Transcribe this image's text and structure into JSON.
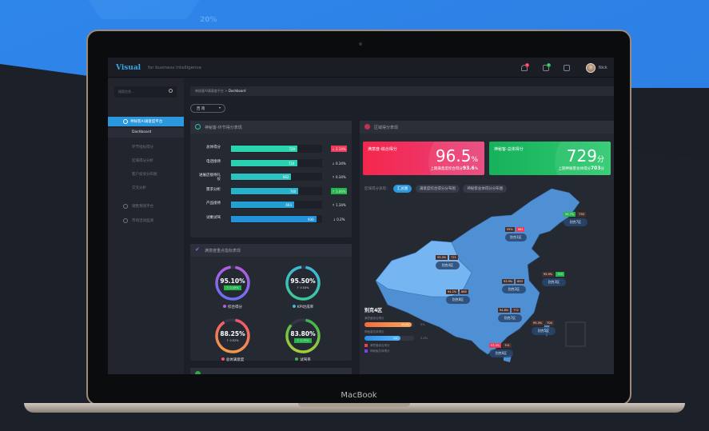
{
  "background": {
    "deco_text": "20%"
  },
  "device": {
    "brand": "MacBook"
  },
  "header": {
    "logo": "Visual",
    "tagline": "for business intelligence",
    "notifications_count": "1",
    "messages_count": "1",
    "user_name": "Nick"
  },
  "sidebar": {
    "search_placeholder": "搜索信息...",
    "items": [
      {
        "label": "神秘客AI满意度平台",
        "active": true
      },
      {
        "label": "Dashboard",
        "sub": true,
        "active": true
      },
      {
        "label": "环节指标得分",
        "sub": true
      },
      {
        "label": "区域得分分析",
        "sub": true
      },
      {
        "label": "客户投诉分布图",
        "sub": true
      },
      {
        "label": "交叉分析",
        "sub": true
      },
      {
        "label": "销售预测平台"
      },
      {
        "label": "市场活动监测"
      }
    ]
  },
  "breadcrumb": {
    "parent": "神秘客AI满意度平台",
    "sep": ">",
    "current": "Dashboard"
  },
  "region_select": {
    "value": "西 南"
  },
  "stage_panel": {
    "title": "神秘客-环节得分表现",
    "rows": [
      {
        "label": "总体得分",
        "value": 729,
        "change": "↓ 2.34%",
        "status": "down-alert"
      },
      {
        "label": "电话接待",
        "value": 724,
        "change": "↓ 0.34%",
        "status": "neutral"
      },
      {
        "label": "进展店接待礼仪",
        "value": 662,
        "change": "↑ 0.34%",
        "status": "neutral"
      },
      {
        "label": "需求分析",
        "value": 740,
        "change": "↑ 3.06%",
        "status": "up-alert"
      },
      {
        "label": "产品接待",
        "value": 693,
        "change": "↑ 1.34%",
        "status": "neutral"
      },
      {
        "label": "试乘试驾",
        "value": 936,
        "change": "↓ 0.2%",
        "status": "neutral"
      }
    ],
    "scale_max": 1000
  },
  "focus_panel": {
    "title": "满意度重点指标表现",
    "rings": [
      {
        "label": "综合得分",
        "value": "95.10%",
        "percent": 95.1,
        "change": "↑ 0.49%",
        "highlight": true,
        "colors": [
          "#6a6ff0",
          "#b65de0"
        ]
      },
      {
        "label": "KPI达成率",
        "value": "95.50%",
        "percent": 95.5,
        "change": "↑ 0.54%",
        "highlight": false,
        "colors": [
          "#3ec69a",
          "#3bbad9"
        ]
      },
      {
        "label": "总体满意度",
        "value": "88.25%",
        "percent": 88.25,
        "change": "↑ 0.52%",
        "highlight": false,
        "colors": [
          "#f29a4a",
          "#f0566a"
        ]
      },
      {
        "label": "试驾率",
        "value": "83.80%",
        "percent": 83.8,
        "change": "↑ 0.79%",
        "highlight": true,
        "colors": [
          "#a6cf3a",
          "#3fb44e"
        ]
      }
    ]
  },
  "region_panel": {
    "title": "区域得分表现",
    "kpi_left": {
      "title": "满意度-综合得分",
      "value": "96.5",
      "unit": "%",
      "sub_label": "上期满意度综合得分",
      "sub_value": "93.6",
      "sub_unit": "%"
    },
    "kpi_right": {
      "title": "神秘客-总体得分",
      "value": "729",
      "unit": "分",
      "sub_label": "上期神秘客总体得分",
      "sub_value": "703",
      "sub_unit": "分"
    },
    "map_label": "区域得分表现：",
    "map_tabs": [
      {
        "label": "汇总图",
        "active": true
      },
      {
        "label": "满意度综合得分分布图"
      },
      {
        "label": "神秘客总体得分分布图"
      }
    ],
    "regions": [
      {
        "name": "别克7区",
        "pct": "96.7%",
        "score": "730",
        "pct_status": "g"
      },
      {
        "name": "别克1区",
        "pct": "95%",
        "score": "665",
        "score_status": "r"
      },
      {
        "name": "别克4区",
        "pct": "95.0%",
        "score": "721"
      },
      {
        "name": "别克3区",
        "pct": "95.9%",
        "score": "793",
        "score_status": "g"
      },
      {
        "name": "别克2区",
        "pct": "93.9%",
        "score": "693"
      },
      {
        "name": "别克8区",
        "pct": "94.2%",
        "score": "665"
      },
      {
        "name": "别克7区",
        "pct": "94.8%",
        "score": "772"
      },
      {
        "name": "别克5区",
        "pct": "95.3%",
        "score": "700"
      },
      {
        "name": "别克6区",
        "pct": "93.3%",
        "score": "701",
        "pct_status": "r"
      }
    ],
    "legend": {
      "title": "别克4区",
      "bar1_label": "满意度综合得分",
      "bar1_value": "95.0%",
      "bar1_pct": 95,
      "bar1_change": "0%",
      "bar2_label": "神秘客总体得分",
      "bar2_value": "721",
      "bar2_pct": 72.1,
      "bar2_change": "2.4%",
      "key1": "满意度综合得分",
      "key2": "神秘客总体得分"
    }
  },
  "colors": {
    "accent": "#2b97dd",
    "red": "#f03a5a",
    "green": "#23b64a",
    "map": "#4f8fd3"
  }
}
